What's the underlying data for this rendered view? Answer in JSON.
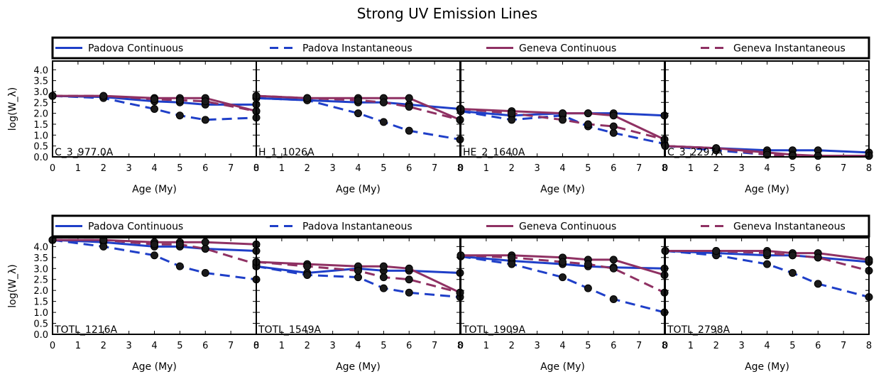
{
  "title": "Strong UV Emission Lines",
  "colors": {
    "padova": "#1f3fc8",
    "geneva": "#8f3163",
    "marker": "#000000"
  },
  "legend": [
    {
      "label": "Padova Continuous",
      "color": "#1f3fc8",
      "style": "solid"
    },
    {
      "label": "Padova Instantaneous",
      "color": "#1f3fc8",
      "style": "dashed"
    },
    {
      "label": "Geneva Continuous",
      "color": "#8f3163",
      "style": "solid"
    },
    {
      "label": "Geneva Instantaneous",
      "color": "#8f3163",
      "style": "dashed"
    }
  ],
  "chart_data": [
    {
      "type": "line",
      "panel_label": "C_3_977.0A",
      "xlabel": "Age (My)",
      "ylabel": "log(W_λ)",
      "xlim": [
        0,
        8
      ],
      "ylim": [
        0,
        4.4
      ],
      "xticks": [
        "0",
        "1",
        "2",
        "3",
        "4",
        "5",
        "6",
        "7",
        "8"
      ],
      "yticks": [
        "0.0",
        "0.5",
        "1.0",
        "1.5",
        "2.0",
        "2.5",
        "3.0",
        "3.5",
        "4.0"
      ],
      "x": [
        0,
        2,
        4,
        5,
        6,
        8
      ],
      "series": [
        {
          "name": "Padova Continuous",
          "values": [
            2.8,
            2.75,
            2.55,
            2.5,
            2.4,
            2.4
          ]
        },
        {
          "name": "Padova Instantaneous",
          "values": [
            2.8,
            2.7,
            2.2,
            1.9,
            1.7,
            1.8
          ]
        },
        {
          "name": "Geneva Continuous",
          "values": [
            2.8,
            2.8,
            2.7,
            2.7,
            2.7,
            2.1
          ]
        },
        {
          "name": "Geneva Instantaneous",
          "values": [
            2.8,
            2.8,
            2.65,
            2.6,
            2.55,
            2.1
          ]
        }
      ]
    },
    {
      "type": "line",
      "panel_label": "H_1_1026A",
      "xlabel": "Age (My)",
      "ylabel": "",
      "xlim": [
        0,
        8
      ],
      "ylim": [
        0,
        4.4
      ],
      "xticks": [
        "0",
        "1",
        "2",
        "3",
        "4",
        "5",
        "6",
        "7",
        "8"
      ],
      "yticks": [],
      "x": [
        0,
        2,
        4,
        5,
        6,
        8
      ],
      "series": [
        {
          "name": "Padova Continuous",
          "values": [
            2.7,
            2.6,
            2.5,
            2.5,
            2.4,
            2.2
          ]
        },
        {
          "name": "Padova Instantaneous",
          "values": [
            2.7,
            2.6,
            2.0,
            1.6,
            1.2,
            0.8
          ]
        },
        {
          "name": "Geneva Continuous",
          "values": [
            2.8,
            2.7,
            2.7,
            2.7,
            2.7,
            1.7
          ]
        },
        {
          "name": "Geneva Instantaneous",
          "values": [
            2.8,
            2.7,
            2.6,
            2.5,
            2.3,
            1.7
          ]
        }
      ]
    },
    {
      "type": "line",
      "panel_label": "HE_2_1640A",
      "xlabel": "Age (My)",
      "ylabel": "",
      "xlim": [
        0,
        8
      ],
      "ylim": [
        0,
        4.4
      ],
      "xticks": [
        "0",
        "1",
        "2",
        "3",
        "4",
        "5",
        "6",
        "7",
        "8"
      ],
      "yticks": [],
      "x": [
        0,
        2,
        4,
        5,
        6,
        8
      ],
      "series": [
        {
          "name": "Padova Continuous",
          "values": [
            2.1,
            1.9,
            2.0,
            2.0,
            2.0,
            1.9
          ]
        },
        {
          "name": "Padova Instantaneous",
          "values": [
            2.1,
            1.7,
            1.9,
            1.4,
            1.1,
            0.6
          ]
        },
        {
          "name": "Geneva Continuous",
          "values": [
            2.2,
            2.1,
            2.0,
            2.0,
            1.9,
            0.8
          ]
        },
        {
          "name": "Geneva Instantaneous",
          "values": [
            2.2,
            2.0,
            1.7,
            1.5,
            1.4,
            0.8
          ]
        }
      ]
    },
    {
      "type": "line",
      "panel_label": "C_3_2297A",
      "xlabel": "Age (My)",
      "ylabel": "",
      "xlim": [
        0,
        8
      ],
      "ylim": [
        0,
        4.4
      ],
      "xticks": [
        "0",
        "1",
        "2",
        "3",
        "4",
        "5",
        "6",
        "7",
        "8"
      ],
      "yticks": [],
      "x": [
        0,
        2,
        4,
        5,
        6,
        8
      ],
      "series": [
        {
          "name": "Padova Continuous",
          "values": [
            0.5,
            0.4,
            0.3,
            0.3,
            0.3,
            0.2
          ]
        },
        {
          "name": "Padova Instantaneous",
          "values": [
            0.5,
            0.3,
            0.1,
            0.05,
            0.05,
            0.05
          ]
        },
        {
          "name": "Geneva Continuous",
          "values": [
            0.5,
            0.4,
            0.2,
            0.1,
            0.05,
            0.05
          ]
        },
        {
          "name": "Geneva Instantaneous",
          "values": [
            0.5,
            0.4,
            0.1,
            0.05,
            0.05,
            0.05
          ]
        }
      ]
    },
    {
      "type": "line",
      "panel_label": "TOTL_1216A",
      "xlabel": "Age (My)",
      "ylabel": "log(W_λ)",
      "xlim": [
        0,
        8
      ],
      "ylim": [
        0,
        4.4
      ],
      "xticks": [
        "0",
        "1",
        "2",
        "3",
        "4",
        "5",
        "6",
        "7",
        "8"
      ],
      "yticks": [
        "0.0",
        "0.5",
        "1.0",
        "1.5",
        "2.0",
        "2.5",
        "3.0",
        "3.5",
        "4.0"
      ],
      "x": [
        0,
        2,
        4,
        5,
        6,
        8
      ],
      "series": [
        {
          "name": "Padova Continuous",
          "values": [
            4.3,
            4.2,
            4.0,
            4.0,
            3.9,
            3.8
          ]
        },
        {
          "name": "Padova Instantaneous",
          "values": [
            4.3,
            4.0,
            3.6,
            3.1,
            2.8,
            2.5
          ]
        },
        {
          "name": "Geneva Continuous",
          "values": [
            4.3,
            4.3,
            4.2,
            4.2,
            4.2,
            4.1
          ]
        },
        {
          "name": "Geneva Instantaneous",
          "values": [
            4.3,
            4.3,
            4.1,
            4.1,
            3.9,
            3.2
          ]
        }
      ]
    },
    {
      "type": "line",
      "panel_label": "TOTL_1549A",
      "xlabel": "Age (My)",
      "ylabel": "",
      "xlim": [
        0,
        8
      ],
      "ylim": [
        0,
        4.4
      ],
      "xticks": [
        "0",
        "1",
        "2",
        "3",
        "4",
        "5",
        "6",
        "7",
        "8"
      ],
      "yticks": [],
      "x": [
        0,
        2,
        4,
        5,
        6,
        8
      ],
      "series": [
        {
          "name": "Padova Continuous",
          "values": [
            3.1,
            2.8,
            3.0,
            2.9,
            2.9,
            2.8
          ]
        },
        {
          "name": "Padova Instantaneous",
          "values": [
            3.1,
            2.7,
            2.6,
            2.1,
            1.9,
            1.7
          ]
        },
        {
          "name": "Geneva Continuous",
          "values": [
            3.3,
            3.2,
            3.1,
            3.1,
            3.0,
            1.9
          ]
        },
        {
          "name": "Geneva Instantaneous",
          "values": [
            3.3,
            3.1,
            2.9,
            2.6,
            2.5,
            1.9
          ]
        }
      ]
    },
    {
      "type": "line",
      "panel_label": "TOTL_1909A",
      "xlabel": "Age (My)",
      "ylabel": "",
      "xlim": [
        0,
        8
      ],
      "ylim": [
        0,
        4.4
      ],
      "xticks": [
        "0",
        "1",
        "2",
        "3",
        "4",
        "5",
        "6",
        "7",
        "8"
      ],
      "yticks": [],
      "x": [
        0,
        2,
        4,
        5,
        6,
        8
      ],
      "series": [
        {
          "name": "Padova Continuous",
          "values": [
            3.55,
            3.35,
            3.2,
            3.1,
            3.05,
            3.0
          ]
        },
        {
          "name": "Padova Instantaneous",
          "values": [
            3.55,
            3.2,
            2.6,
            2.1,
            1.6,
            1.0
          ]
        },
        {
          "name": "Geneva Continuous",
          "values": [
            3.6,
            3.6,
            3.5,
            3.4,
            3.4,
            2.7
          ]
        },
        {
          "name": "Geneva Instantaneous",
          "values": [
            3.6,
            3.5,
            3.3,
            3.2,
            3.0,
            1.9
          ]
        }
      ]
    },
    {
      "type": "line",
      "panel_label": "TOTL_2798A",
      "xlabel": "Age (My)",
      "ylabel": "",
      "xlim": [
        0,
        8
      ],
      "ylim": [
        0,
        4.4
      ],
      "xticks": [
        "0",
        "1",
        "2",
        "3",
        "4",
        "5",
        "6",
        "7",
        "8"
      ],
      "yticks": [],
      "x": [
        0,
        2,
        4,
        5,
        6,
        8
      ],
      "series": [
        {
          "name": "Padova Continuous",
          "values": [
            3.8,
            3.7,
            3.6,
            3.6,
            3.5,
            3.3
          ]
        },
        {
          "name": "Padova Instantaneous",
          "values": [
            3.8,
            3.6,
            3.2,
            2.8,
            2.3,
            1.7
          ]
        },
        {
          "name": "Geneva Continuous",
          "values": [
            3.8,
            3.8,
            3.8,
            3.7,
            3.7,
            3.4
          ]
        },
        {
          "name": "Geneva Instantaneous",
          "values": [
            3.8,
            3.8,
            3.7,
            3.6,
            3.5,
            2.9
          ]
        }
      ]
    }
  ]
}
